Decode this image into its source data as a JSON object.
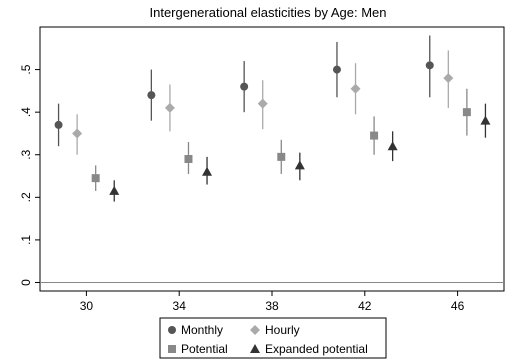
{
  "chart_data": {
    "type": "scatter",
    "title": "Intergenerational elasticities by Age: Men",
    "xlabel": "",
    "ylabel": "",
    "x_ticks": [
      "30",
      "34",
      "38",
      "42",
      "46"
    ],
    "y_ticks": [
      "0",
      ".1",
      ".2",
      ".3",
      ".4",
      ".5"
    ],
    "xlim": [
      28,
      48
    ],
    "ylim": [
      -0.02,
      0.6
    ],
    "grid": false,
    "reference_line_y": 0,
    "legend_position": "bottom",
    "series": [
      {
        "name": "Monthly",
        "marker": "circle",
        "color": "#555555",
        "points": [
          {
            "x": 28.8,
            "y": 0.37,
            "low": 0.32,
            "high": 0.42
          },
          {
            "x": 32.8,
            "y": 0.44,
            "low": 0.38,
            "high": 0.5
          },
          {
            "x": 36.8,
            "y": 0.46,
            "low": 0.4,
            "high": 0.52
          },
          {
            "x": 40.8,
            "y": 0.5,
            "low": 0.435,
            "high": 0.565
          },
          {
            "x": 44.8,
            "y": 0.51,
            "low": 0.435,
            "high": 0.58
          }
        ]
      },
      {
        "name": "Hourly",
        "marker": "diamond",
        "color": "#aaaaaa",
        "points": [
          {
            "x": 29.6,
            "y": 0.35,
            "low": 0.3,
            "high": 0.395
          },
          {
            "x": 33.6,
            "y": 0.41,
            "low": 0.355,
            "high": 0.465
          },
          {
            "x": 37.6,
            "y": 0.42,
            "low": 0.36,
            "high": 0.475
          },
          {
            "x": 41.6,
            "y": 0.455,
            "low": 0.395,
            "high": 0.515
          },
          {
            "x": 45.6,
            "y": 0.48,
            "low": 0.41,
            "high": 0.545
          }
        ]
      },
      {
        "name": "Potential",
        "marker": "square",
        "color": "#888888",
        "points": [
          {
            "x": 30.4,
            "y": 0.245,
            "low": 0.215,
            "high": 0.275
          },
          {
            "x": 34.4,
            "y": 0.29,
            "low": 0.255,
            "high": 0.33
          },
          {
            "x": 38.4,
            "y": 0.295,
            "low": 0.255,
            "high": 0.335
          },
          {
            "x": 42.4,
            "y": 0.345,
            "low": 0.3,
            "high": 0.39
          },
          {
            "x": 46.4,
            "y": 0.4,
            "low": 0.345,
            "high": 0.455
          }
        ]
      },
      {
        "name": "Expanded potential",
        "marker": "triangle",
        "color": "#333333",
        "points": [
          {
            "x": 31.2,
            "y": 0.215,
            "low": 0.19,
            "high": 0.24
          },
          {
            "x": 35.2,
            "y": 0.26,
            "low": 0.23,
            "high": 0.295
          },
          {
            "x": 39.2,
            "y": 0.275,
            "low": 0.24,
            "high": 0.305
          },
          {
            "x": 43.2,
            "y": 0.32,
            "low": 0.285,
            "high": 0.355
          },
          {
            "x": 47.2,
            "y": 0.38,
            "low": 0.34,
            "high": 0.42
          }
        ]
      }
    ]
  }
}
